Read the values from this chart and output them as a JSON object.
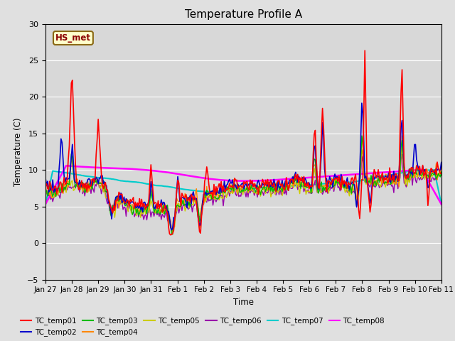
{
  "title": "Temperature Profile A",
  "xlabel": "Time",
  "ylabel": "Temperature (C)",
  "ylim": [
    -5,
    30
  ],
  "background_color": "#e0e0e0",
  "plot_bg": "#d8d8d8",
  "grid_color": "#ffffff",
  "annotation_text": "HS_met",
  "annotation_bg": "#ffffcc",
  "annotation_border": "#8b6914",
  "annotation_text_color": "#8b0000",
  "series_colors": {
    "TC_temp01": "#ff0000",
    "TC_temp02": "#0000cc",
    "TC_temp03": "#00bb00",
    "TC_temp04": "#ff8800",
    "TC_temp05": "#cccc00",
    "TC_temp06": "#9900aa",
    "TC_temp07": "#00cccc",
    "TC_temp08": "#ff00ff"
  },
  "x_tick_labels": [
    "Jan 27",
    "Jan 28",
    "Jan 29",
    "Jan 30",
    "Jan 31",
    "Feb 1",
    "Feb 2",
    "Feb 3",
    "Feb 4",
    "Feb 5",
    "Feb 6",
    "Feb 7",
    "Feb 8",
    "Feb 9",
    "Feb 10",
    "Feb 11"
  ],
  "x_tick_positions": [
    0,
    1,
    2,
    3,
    4,
    5,
    6,
    7,
    8,
    9,
    10,
    11,
    12,
    13,
    14,
    15
  ]
}
